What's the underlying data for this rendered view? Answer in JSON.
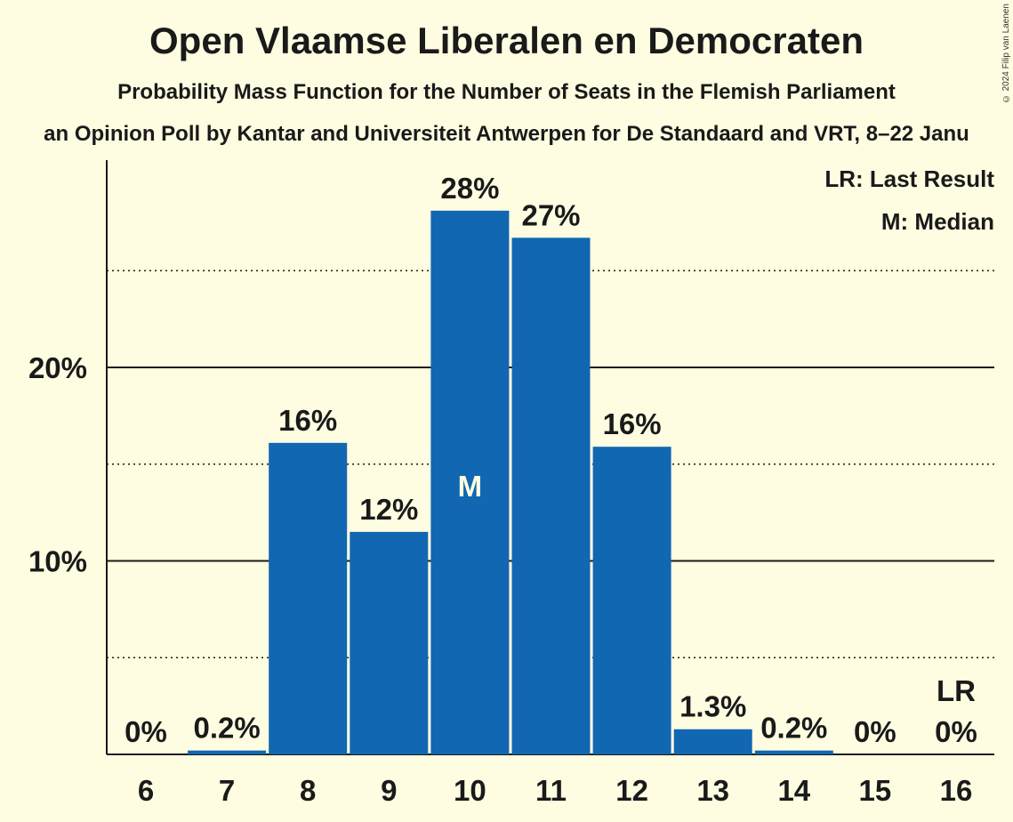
{
  "header": {
    "title": "Open Vlaamse Liberalen en Democraten",
    "subtitle": "Probability Mass Function for the Number of Seats in the Flemish Parliament",
    "subtitle2": "an Opinion Poll by Kantar and Universiteit Antwerpen for De Standaard and VRT, 8–22 Janu",
    "copyright": "© 2024 Filip van Laenen"
  },
  "legend": {
    "last_result": "LR: Last Result",
    "median": "M: Median"
  },
  "colors": {
    "bar": "#1167B1",
    "background": "#FFFDE1",
    "median_text": "#FFFDE1"
  },
  "chart_data": {
    "type": "bar",
    "categories": [
      "6",
      "7",
      "8",
      "9",
      "10",
      "11",
      "12",
      "13",
      "14",
      "15",
      "16"
    ],
    "values": [
      0,
      0.2,
      16.1,
      11.5,
      28.1,
      26.7,
      15.9,
      1.3,
      0.2,
      0,
      0
    ],
    "value_labels": [
      "0%",
      "0.2%",
      "16%",
      "12%",
      "28%",
      "27%",
      "16%",
      "1.3%",
      "0.2%",
      "0%",
      "0%"
    ],
    "ylim": [
      0,
      30
    ],
    "yticks": [
      10,
      20
    ],
    "ytick_labels": [
      "10%",
      "20%"
    ],
    "minor_gridlines": [
      5,
      15,
      25
    ],
    "median_category": "10",
    "median_marker": "M",
    "last_result_category": "16",
    "last_result_marker": "LR",
    "xlabel": "",
    "ylabel": "",
    "legend_position": "top-right"
  }
}
